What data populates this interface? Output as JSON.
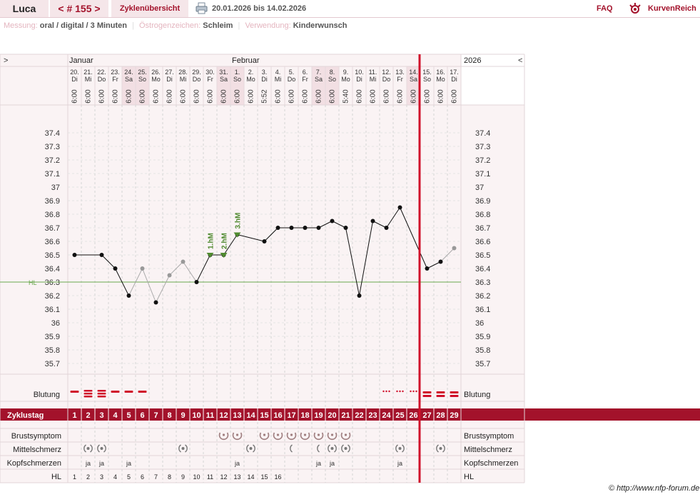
{
  "header": {
    "name": "Luca",
    "cycle_label": "< # 155 >",
    "overview_label": "Zyklenübersicht",
    "print_icon": "printer-icon",
    "date_range": "20.01.2026 bis 14.02.2026",
    "faq_label": "FAQ",
    "logo_icon": "kurvenreich-logo-icon",
    "brand": "KurvenReich"
  },
  "info": {
    "messung_label": "Messung:",
    "messung_value": "oral / digital / 3 Minuten",
    "oestrogen_label": "Östrogenzeichen:",
    "oestrogen_value": "Schleim",
    "verwendung_label": "Verwendung:",
    "verwendung_value": "Kinderwunsch"
  },
  "nav": {
    "prev": ">",
    "next": "<"
  },
  "copyright": "© http://www.nfp-forum.de",
  "colors": {
    "accent": "#a3122b",
    "coverline": "#6aa84f",
    "marker": "#4f8a2f",
    "current_day": "#d0102a"
  },
  "chart_data": {
    "type": "line",
    "months": [
      {
        "label": "Januar",
        "start_day": 1
      },
      {
        "label": "Februar",
        "start_day": 13
      }
    ],
    "year_label": "2026",
    "days": [
      {
        "date": "20.",
        "wd": "Di",
        "time": "6:00"
      },
      {
        "date": "21.",
        "wd": "Mi",
        "time": "6:00"
      },
      {
        "date": "22.",
        "wd": "Do",
        "time": "6:00"
      },
      {
        "date": "23.",
        "wd": "Fr",
        "time": "6:00"
      },
      {
        "date": "24.",
        "wd": "Sa",
        "time": "6:00"
      },
      {
        "date": "25.",
        "wd": "So",
        "time": "6:00"
      },
      {
        "date": "26.",
        "wd": "Mo",
        "time": "6:00"
      },
      {
        "date": "27.",
        "wd": "Di",
        "time": "6:00"
      },
      {
        "date": "28.",
        "wd": "Mi",
        "time": "6:00"
      },
      {
        "date": "29.",
        "wd": "Do",
        "time": "6:00"
      },
      {
        "date": "30.",
        "wd": "Fr",
        "time": "6:00"
      },
      {
        "date": "31.",
        "wd": "Sa",
        "time": "6:00"
      },
      {
        "date": "1.",
        "wd": "So",
        "time": "6:00"
      },
      {
        "date": "2.",
        "wd": "Mo",
        "time": "6:00"
      },
      {
        "date": "3.",
        "wd": "Di",
        "time": "5:52"
      },
      {
        "date": "4.",
        "wd": "Mi",
        "time": "6:00"
      },
      {
        "date": "5.",
        "wd": "Do",
        "time": "6:00"
      },
      {
        "date": "6.",
        "wd": "Fr",
        "time": "6:00"
      },
      {
        "date": "7.",
        "wd": "Sa",
        "time": "6:00"
      },
      {
        "date": "8.",
        "wd": "So",
        "time": "6:00"
      },
      {
        "date": "9.",
        "wd": "Mo",
        "time": "5:40"
      },
      {
        "date": "10.",
        "wd": "Di",
        "time": "6:00"
      },
      {
        "date": "11.",
        "wd": "Mi",
        "time": "6:00"
      },
      {
        "date": "12.",
        "wd": "Do",
        "time": "6:00"
      },
      {
        "date": "13.",
        "wd": "Fr",
        "time": "6:00"
      },
      {
        "date": "14.",
        "wd": "Sa",
        "time": "6:00"
      },
      {
        "date": "15.",
        "wd": "So",
        "time": "6:00"
      },
      {
        "date": "16.",
        "wd": "Mo",
        "time": "6:00"
      },
      {
        "date": "17.",
        "wd": "Di",
        "time": "6:00"
      }
    ],
    "weekend_days": [
      5,
      6,
      12,
      13,
      19,
      20,
      26
    ],
    "yticks": [
      "37.4",
      "37.3",
      "37.2",
      "37.1",
      "37",
      "36.9",
      "36.8",
      "36.7",
      "36.6",
      "36.5",
      "36.4",
      "36.3",
      "36.2",
      "36.1",
      "36",
      "35.9",
      "35.8",
      "35.7"
    ],
    "ylim": [
      35.7,
      37.4
    ],
    "temperatures": [
      36.5,
      null,
      36.5,
      36.4,
      36.2,
      36.4,
      36.15,
      36.35,
      36.45,
      36.3,
      36.5,
      36.5,
      36.65,
      null,
      36.6,
      36.7,
      36.7,
      36.7,
      36.7,
      36.75,
      36.7,
      36.2,
      36.75,
      36.7,
      36.85,
      null,
      36.4,
      36.45,
      36.55
    ],
    "excluded_days": [
      6,
      8,
      9,
      29
    ],
    "coverline": {
      "label": "HL",
      "value": 36.3
    },
    "markers": [
      {
        "day": 11,
        "label": "1.hM"
      },
      {
        "day": 12,
        "label": "2.hM"
      },
      {
        "day": 13,
        "label": "3.hM"
      }
    ],
    "current_day": 26,
    "rows": {
      "blutung_label": "Blutung",
      "blutung": {
        "heavy": [
          2,
          3
        ],
        "medium": [
          1,
          4,
          5,
          6,
          27,
          28,
          29
        ],
        "spotting": [
          24,
          25,
          26
        ]
      },
      "zyklustag_label": "Zyklustag",
      "zyklustag": [
        "1",
        "2",
        "3",
        "4",
        "5",
        "6",
        "7",
        "8",
        "9",
        "10",
        "11",
        "12",
        "13",
        "14",
        "15",
        "16",
        "17",
        "18",
        "19",
        "20",
        "21",
        "22",
        "23",
        "24",
        "25",
        "26",
        "27",
        "28",
        "29"
      ],
      "brust_label": "Brustsymptom",
      "brust_days": [
        12,
        13,
        15,
        16,
        17,
        18,
        19,
        20,
        21
      ],
      "mittel_label": "Mittelschmerz",
      "mittel_full": [
        2,
        3,
        9,
        14,
        20,
        21,
        25,
        28
      ],
      "mittel_half": [
        17,
        19
      ],
      "kopf_label": "Kopfschmerzen",
      "kopf": {
        "2": "ja",
        "3": "ja",
        "5": "ja",
        "13": "ja",
        "19": "ja",
        "20": "ja",
        "25": "ja"
      },
      "hl_label": "HL",
      "hl": [
        "1",
        "2",
        "3",
        "4",
        "5",
        "6",
        "7",
        "8",
        "9",
        "10",
        "11",
        "12",
        "13",
        "14",
        "15",
        "16"
      ]
    }
  }
}
